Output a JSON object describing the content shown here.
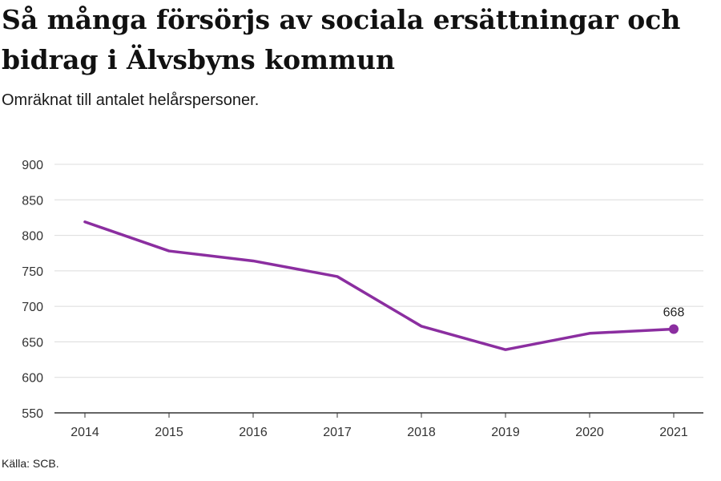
{
  "header": {
    "title": "Så många försörjs av sociala ersättningar och bidrag i Älvsbyns kommun",
    "subtitle": "Omräknat till antalet helårspersoner."
  },
  "footer": {
    "source": "Källa: SCB."
  },
  "chart_data": {
    "type": "line",
    "title": "Så många försörjs av sociala ersättningar och bidrag i Älvsbyns kommun",
    "subtitle": "Omräknat till antalet helårspersoner.",
    "x": [
      "2014",
      "2015",
      "2016",
      "2017",
      "2018",
      "2019",
      "2020",
      "2021"
    ],
    "series": [
      {
        "values": [
          819,
          778,
          764,
          742,
          672,
          639,
          662,
          668
        ],
        "color": "#8b2ea0"
      }
    ],
    "ylim": [
      550,
      900
    ],
    "yticks": [
      550,
      600,
      650,
      700,
      750,
      800,
      850,
      900
    ],
    "grid": true,
    "legend": "none",
    "data_labels": [
      {
        "x": "2021",
        "text": "668"
      }
    ],
    "xlabel": "",
    "ylabel": ""
  }
}
